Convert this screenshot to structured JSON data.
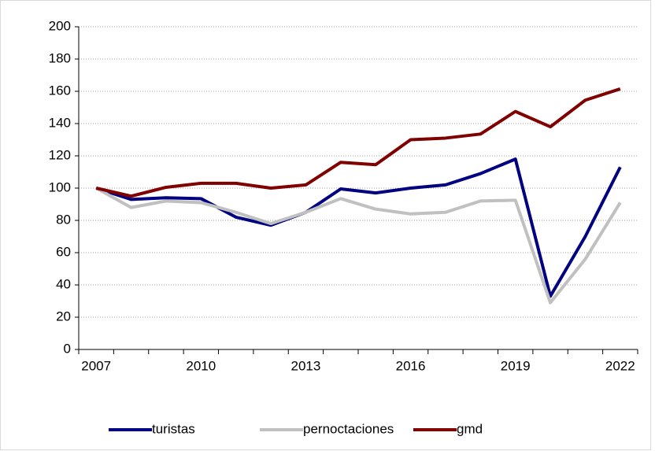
{
  "chart_data": {
    "type": "line",
    "categories": [
      "2007",
      null,
      null,
      "2010",
      null,
      null,
      "2013",
      null,
      null,
      "2016",
      null,
      null,
      "2019",
      null,
      null,
      "2022"
    ],
    "series": [
      {
        "name": "turistas",
        "color": "#000080",
        "values": [
          100,
          93,
          94,
          93.5,
          82,
          77,
          85,
          99.5,
          97,
          100,
          102,
          109,
          118,
          33,
          70,
          113
        ]
      },
      {
        "name": "pernoctaciones",
        "color": "#c0c0c0",
        "values": [
          100,
          88,
          92,
          91,
          85,
          78,
          85,
          93.5,
          87,
          84,
          85,
          92,
          92.5,
          29,
          56,
          91
        ]
      },
      {
        "name": "gmd",
        "color": "#800000",
        "values": [
          100,
          95,
          100.5,
          103,
          103,
          100,
          102,
          116,
          114.5,
          130,
          131,
          133.5,
          147.5,
          138,
          154.5,
          161.5
        ]
      }
    ],
    "ylim": [
      0,
      200
    ],
    "yticks": [
      0,
      20,
      40,
      60,
      80,
      100,
      120,
      140,
      160,
      180,
      200
    ],
    "grid": true,
    "legend": "bottom"
  }
}
